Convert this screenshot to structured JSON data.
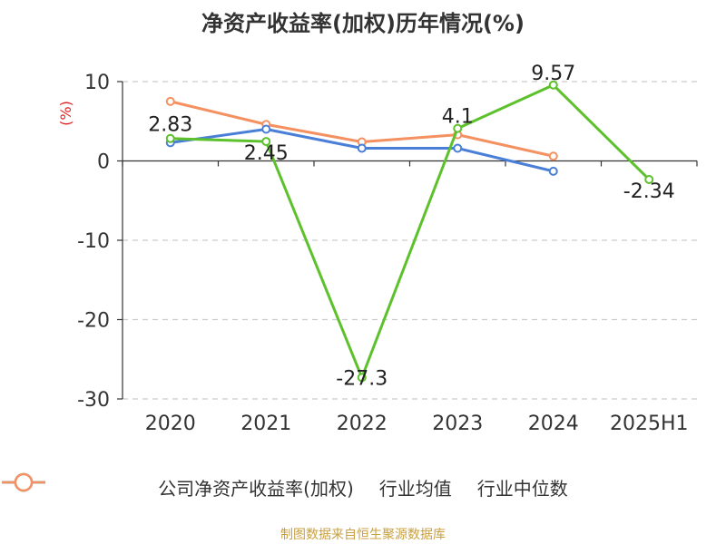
{
  "title": "净资产收益率(加权)历年情况(%)",
  "source": "制图数据来自恒生聚源数据库",
  "chart_data": {
    "type": "line",
    "title": "净资产收益率(加权)历年情况(%)",
    "ylabel": "(%)",
    "xlabel": "",
    "categories": [
      "2020",
      "2021",
      "2022",
      "2023",
      "2024",
      "2025H1"
    ],
    "ylim": [
      -30,
      10
    ],
    "yticks": [
      10,
      0,
      -10,
      -20,
      -30
    ],
    "grid": true,
    "legend_position": "bottom",
    "series": [
      {
        "name": "公司净资产收益率(加权)",
        "color": "#5cc12a",
        "values": [
          2.83,
          2.45,
          -27.3,
          4.1,
          9.57,
          -2.34
        ],
        "labels": [
          "2.83",
          "2.45",
          "-27.3",
          "4.1",
          "9.57",
          "-2.34"
        ]
      },
      {
        "name": "行业均值",
        "color": "#4a7fd8",
        "values": [
          2.3,
          4.0,
          1.6,
          1.6,
          -1.3,
          null
        ]
      },
      {
        "name": "行业中位数",
        "color": "#f59060",
        "values": [
          7.5,
          4.6,
          2.4,
          3.3,
          0.6,
          null
        ]
      }
    ]
  }
}
